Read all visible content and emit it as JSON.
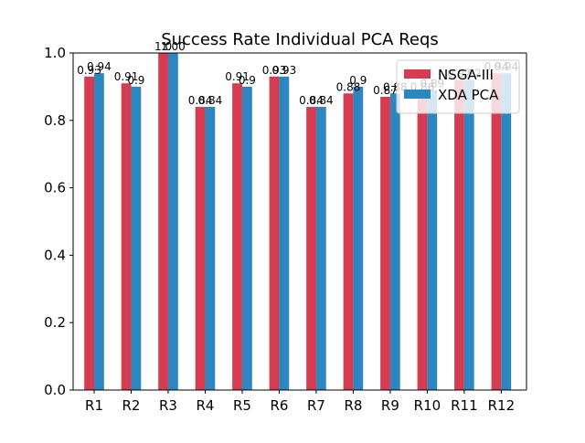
{
  "chart_data": {
    "type": "bar",
    "title": "Success Rate Individual PCA Reqs",
    "xlabel": "",
    "ylabel": "",
    "ylim": [
      0,
      1.0
    ],
    "yticks": [
      "0.0",
      "0.2",
      "0.4",
      "0.6",
      "0.8",
      "1.0"
    ],
    "categories": [
      "R1",
      "R2",
      "R3",
      "R4",
      "R5",
      "R6",
      "R7",
      "R8",
      "R9",
      "R10",
      "R11",
      "R12"
    ],
    "series": [
      {
        "name": "NSGA-III",
        "color": "#d43d51",
        "values": [
          0.93,
          0.91,
          1.0,
          0.84,
          0.91,
          0.93,
          0.84,
          0.88,
          0.87,
          0.88,
          0.92,
          0.94
        ],
        "labels": [
          "0.93",
          "0.91",
          "1.0",
          "0.84",
          "0.91",
          "0.93",
          "0.84",
          "0.88",
          "0.87",
          "0.88",
          "0.92",
          "0.94"
        ]
      },
      {
        "name": "XDA PCA",
        "color": "#2e86c1",
        "values": [
          0.94,
          0.9,
          1.0,
          0.84,
          0.9,
          0.93,
          0.84,
          0.9,
          0.88,
          0.89,
          0.92,
          0.94
        ],
        "labels": [
          "0.94",
          "0.9",
          "1.00",
          "0.84",
          "0.9",
          "0.93",
          "0.84",
          "0.9",
          "0.88",
          "0.89",
          "0.92",
          "0.94"
        ]
      }
    ],
    "grid": false,
    "legend_position": "top-right"
  }
}
